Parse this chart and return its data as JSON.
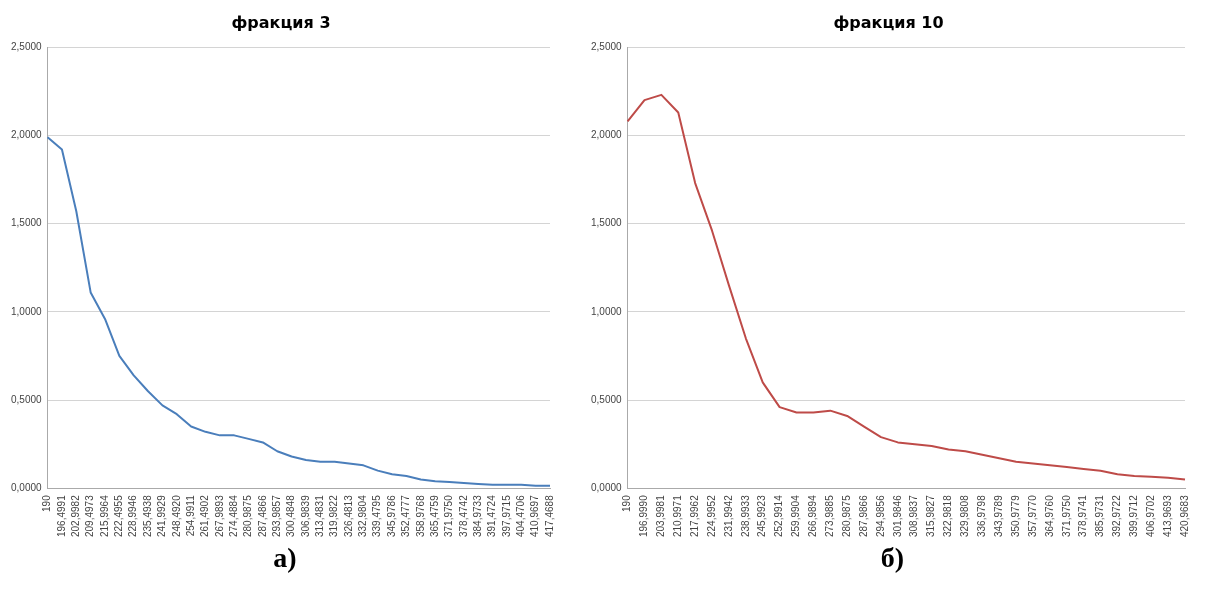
{
  "chart_data": [
    {
      "type": "line",
      "title": "фракция 3",
      "categories": [
        "190",
        "196,4991",
        "202,9982",
        "209,4973",
        "215,9964",
        "222,4955",
        "228,9946",
        "235,4938",
        "241,9929",
        "248,4920",
        "254,9911",
        "261,4902",
        "267,9893",
        "274,4884",
        "280,9875",
        "287,4866",
        "293,9857",
        "300,4848",
        "306,9839",
        "313,4831",
        "319,9822",
        "326,4813",
        "332,9804",
        "339,4795",
        "345,9786",
        "352,4777",
        "358,9768",
        "365,4759",
        "371,9750",
        "378,4742",
        "384,9733",
        "391,4724",
        "397,9715",
        "404,4706",
        "410,9697",
        "417,4688"
      ],
      "series": [
        {
          "color": "#4a7ebb",
          "values": [
            1.99,
            1.92,
            1.57,
            1.11,
            0.96,
            0.75,
            0.64,
            0.55,
            0.47,
            0.42,
            0.35,
            0.32,
            0.3,
            0.3,
            0.28,
            0.26,
            0.21,
            0.18,
            0.16,
            0.15,
            0.15,
            0.14,
            0.13,
            0.1,
            0.08,
            0.07,
            0.05,
            0.04,
            0.035,
            0.03,
            0.025,
            0.02,
            0.02,
            0.02,
            0.015,
            0.015
          ]
        }
      ],
      "ylim": [
        0,
        2.5
      ],
      "yticks": [
        {
          "value": 0,
          "label": "0,0000"
        },
        {
          "value": 0.5,
          "label": "0,5000"
        },
        {
          "value": 1,
          "label": "1,0000"
        },
        {
          "value": 1.5,
          "label": "1,5000"
        },
        {
          "value": 2,
          "label": "2,0000"
        },
        {
          "value": 2.5,
          "label": "2,5000"
        }
      ],
      "grid": "y",
      "legend": false,
      "annotations": [
        "а)"
      ]
    },
    {
      "type": "line",
      "title": "фракция 10",
      "categories": [
        "190",
        "196,9990",
        "203,9981",
        "210,9971",
        "217,9962",
        "224,9952",
        "231,9942",
        "238,9933",
        "245,9923",
        "252,9914",
        "259,9904",
        "266,9894",
        "273,9885",
        "280,9875",
        "287,9866",
        "294,9856",
        "301,9846",
        "308,9837",
        "315,9827",
        "322,9818",
        "329,9808",
        "336,9798",
        "343,9789",
        "350,9779",
        "357,9770",
        "364,9760",
        "371,9750",
        "378,9741",
        "385,9731",
        "392,9722",
        "399,9712",
        "406,9702",
        "413,9693",
        "420,9683"
      ],
      "series": [
        {
          "color": "#be4b48",
          "values": [
            2.08,
            2.2,
            2.23,
            2.13,
            1.73,
            1.46,
            1.15,
            0.85,
            0.6,
            0.46,
            0.43,
            0.43,
            0.44,
            0.41,
            0.35,
            0.29,
            0.26,
            0.25,
            0.24,
            0.22,
            0.21,
            0.19,
            0.17,
            0.15,
            0.14,
            0.13,
            0.12,
            0.11,
            0.1,
            0.08,
            0.07,
            0.065,
            0.06,
            0.05
          ]
        }
      ],
      "ylim": [
        0,
        2.5
      ],
      "yticks": [
        {
          "value": 0,
          "label": "0,0000"
        },
        {
          "value": 0.5,
          "label": "0,5000"
        },
        {
          "value": 1,
          "label": "1,0000"
        },
        {
          "value": 1.5,
          "label": "1,5000"
        },
        {
          "value": 2,
          "label": "2,0000"
        },
        {
          "value": 2.5,
          "label": "2,5000"
        }
      ],
      "grid": "y",
      "legend": false,
      "annotations": [
        "б)"
      ]
    }
  ]
}
